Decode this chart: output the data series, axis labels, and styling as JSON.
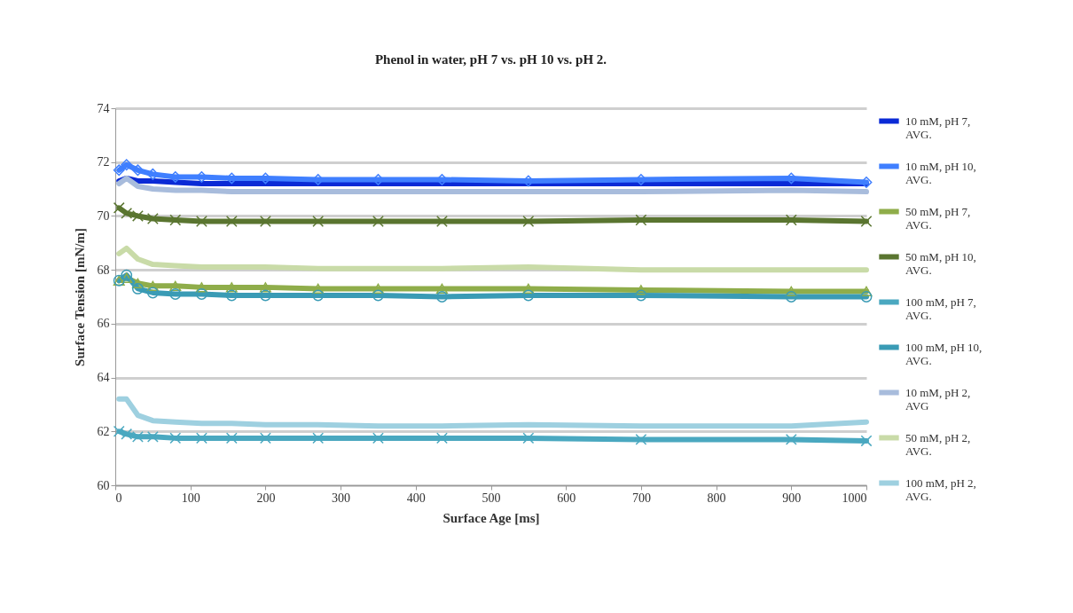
{
  "chart_data": {
    "type": "line",
    "title": "Phenol in water, pH 7 vs. pH 10 vs. pH 2.",
    "xlabel": "Surface Age [ms]",
    "ylabel": "Surface Tension [mN/m]",
    "x": [
      5,
      15,
      30,
      50,
      80,
      115,
      155,
      200,
      270,
      350,
      435,
      550,
      700,
      900,
      1000
    ],
    "series": [
      {
        "name": "10 mM, pH 7, AVG.",
        "color": "#0a2ad6",
        "marker": "none",
        "values": [
          71.3,
          71.4,
          71.3,
          71.3,
          71.25,
          71.2,
          71.2,
          71.2,
          71.2,
          71.2,
          71.2,
          71.2,
          71.2,
          71.2,
          71.2
        ]
      },
      {
        "name": "10 mM, pH 10, AVG.",
        "color": "#3f7fff",
        "marker": "diamond",
        "values": [
          71.7,
          71.9,
          71.7,
          71.55,
          71.45,
          71.45,
          71.4,
          71.4,
          71.35,
          71.35,
          71.35,
          71.3,
          71.35,
          71.4,
          71.25
        ]
      },
      {
        "name": "50 mM, pH 7, AVG.",
        "color": "#8fad4a",
        "marker": "triangle",
        "values": [
          67.6,
          67.7,
          67.5,
          67.4,
          67.4,
          67.35,
          67.35,
          67.35,
          67.3,
          67.3,
          67.3,
          67.3,
          67.25,
          67.2,
          67.2
        ]
      },
      {
        "name": "50 mM, pH 10, AVG.",
        "color": "#5a7530",
        "marker": "cross",
        "values": [
          70.3,
          70.1,
          70.0,
          69.9,
          69.85,
          69.8,
          69.8,
          69.8,
          69.8,
          69.8,
          69.8,
          69.8,
          69.85,
          69.85,
          69.8
        ]
      },
      {
        "name": "100 mM, pH 7, AVG.",
        "color": "#4aa8c0",
        "marker": "cross",
        "values": [
          62.0,
          61.9,
          61.8,
          61.8,
          61.75,
          61.75,
          61.75,
          61.75,
          61.75,
          61.75,
          61.75,
          61.75,
          61.7,
          61.7,
          61.65
        ]
      },
      {
        "name": "100 mM, pH 10, AVG.",
        "color": "#3a9bb5",
        "marker": "circle",
        "values": [
          67.6,
          67.8,
          67.3,
          67.15,
          67.1,
          67.1,
          67.05,
          67.05,
          67.05,
          67.05,
          67.0,
          67.05,
          67.05,
          67.0,
          67.0
        ]
      },
      {
        "name": "10 mM, pH 2, AVG",
        "color": "#a8bcdc",
        "marker": "none",
        "values": [
          71.2,
          71.4,
          71.1,
          71.0,
          70.95,
          70.95,
          70.9,
          70.9,
          70.9,
          70.9,
          70.9,
          70.9,
          70.9,
          70.95,
          70.9
        ]
      },
      {
        "name": "50 mM, pH 2, AVG.",
        "color": "#c9dba8",
        "marker": "none",
        "values": [
          68.6,
          68.8,
          68.4,
          68.2,
          68.15,
          68.1,
          68.1,
          68.1,
          68.05,
          68.05,
          68.05,
          68.1,
          68.0,
          68.0,
          68.0
        ]
      },
      {
        "name": "100 mM, pH 2, AVG.",
        "color": "#9ed0e0",
        "marker": "none",
        "values": [
          63.2,
          63.2,
          62.6,
          62.4,
          62.35,
          62.3,
          62.3,
          62.25,
          62.25,
          62.2,
          62.2,
          62.25,
          62.2,
          62.2,
          62.35
        ]
      }
    ],
    "xlim": [
      0,
      1000
    ],
    "xticks": [
      0,
      100,
      200,
      300,
      400,
      500,
      600,
      700,
      800,
      900,
      1000
    ],
    "ylim": [
      60,
      74
    ],
    "yticks": [
      60,
      62,
      64,
      66,
      68,
      70,
      72,
      74
    ],
    "grid": "y",
    "legend": "right",
    "line_style": "solid"
  }
}
